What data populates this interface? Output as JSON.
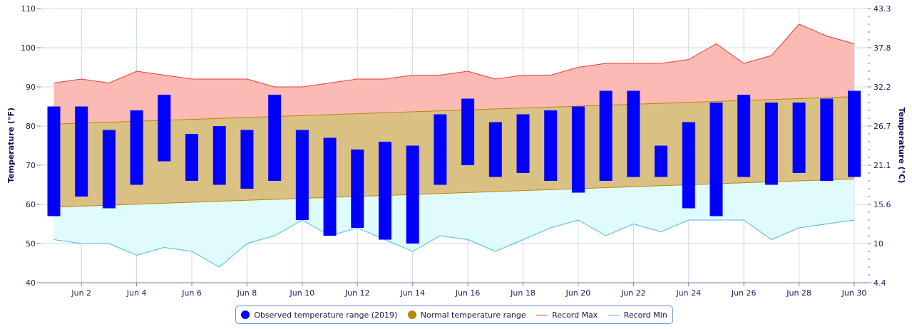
{
  "chart_data": {
    "type": "bar",
    "x_ticks": [
      "Jun 2",
      "Jun 4",
      "Jun 6",
      "Jun 8",
      "Jun 10",
      "Jun 12",
      "Jun 14",
      "Jun 16",
      "Jun 18",
      "Jun 20",
      "Jun 22",
      "Jun 24",
      "Jun 26",
      "Jun 28",
      "Jun 30"
    ],
    "days": [
      1,
      2,
      3,
      4,
      5,
      6,
      7,
      8,
      9,
      10,
      11,
      12,
      13,
      14,
      15,
      16,
      17,
      18,
      19,
      20,
      21,
      22,
      23,
      24,
      25,
      26,
      27,
      28,
      29,
      30
    ],
    "y_left": {
      "label": "Temperature (°F)",
      "ticks": [
        "110",
        "100",
        "90",
        "80",
        "70",
        "60",
        "50",
        "40"
      ],
      "range": [
        40,
        110
      ]
    },
    "y_right": {
      "label": "Temperature (°C)",
      "ticks": [
        "43.3",
        "37.8",
        "32.2",
        "26.7",
        "21.1",
        "15.6",
        "10",
        "4.4"
      ]
    },
    "series": [
      {
        "name": "Observed temperature range (2019)",
        "color": "#0000ff",
        "low": [
          57,
          62,
          59,
          65,
          71,
          66,
          65,
          64,
          66,
          56,
          52,
          54,
          51,
          50,
          65,
          70,
          67,
          68,
          66,
          63,
          66,
          67,
          67,
          59,
          57,
          67,
          65,
          68,
          66,
          67
        ],
        "high": [
          85,
          85,
          79,
          84,
          88,
          78,
          80,
          79,
          88,
          79,
          77,
          74,
          76,
          75,
          83,
          87,
          81,
          83,
          84,
          85,
          89,
          89,
          75,
          81,
          86,
          88,
          86,
          86,
          87,
          89
        ]
      },
      {
        "name": "Normal temperature range",
        "color": "#b8860b",
        "low_start": 59.3,
        "low_end": 66.5,
        "high_start": 80.5,
        "high_end": 87.5
      },
      {
        "name": "Record Max",
        "color": "#e83a3a",
        "values": [
          91,
          92,
          91,
          94,
          93,
          92,
          92,
          92,
          90,
          90,
          91,
          92,
          92,
          93,
          93,
          94,
          92,
          93,
          93,
          95,
          96,
          96,
          96,
          97,
          101,
          96,
          98,
          106,
          103,
          101
        ]
      },
      {
        "name": "Record Min",
        "color": "#4cb8e8",
        "values": [
          51,
          50,
          50,
          47,
          49,
          48,
          44,
          50,
          52,
          56,
          52,
          54,
          51,
          48,
          52,
          51,
          48,
          51,
          54,
          56,
          52,
          55,
          53,
          56,
          56,
          56,
          51,
          54,
          55,
          56
        ]
      }
    ],
    "grid": true,
    "legend": "bottom-center"
  },
  "legend": {
    "observed": "Observed temperature range (2019)",
    "normal": "Normal temperature range",
    "record_max": "Record Max",
    "record_min": "Record Min"
  }
}
